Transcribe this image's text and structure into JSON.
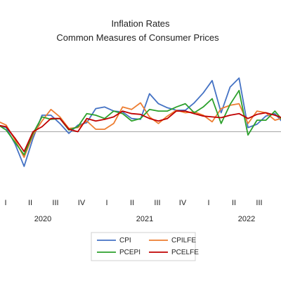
{
  "chart_data": {
    "type": "line",
    "title": "Inflation Rates",
    "subtitle": "Common Measures of Consumer Prices",
    "x_quarter_labels": [
      "I",
      "II",
      "III",
      "IV",
      "I",
      "II",
      "III",
      "IV",
      "I",
      "II",
      "III"
    ],
    "x_year_labels": [
      "2020",
      "2021",
      "2022"
    ],
    "ylim": [
      -6,
      10
    ],
    "grid": false,
    "legend_position": "bottom",
    "series": [
      {
        "name": "CPI",
        "color": "#4472c4",
        "values": [
          0.8,
          0.5,
          -1.5,
          -4.2,
          -0.8,
          2.0,
          2.0,
          1.0,
          -0.2,
          0.8,
          1.1,
          2.8,
          3.0,
          2.5,
          2.4,
          1.6,
          1.5,
          4.6,
          3.4,
          2.9,
          2.6,
          2.6,
          3.5,
          4.7,
          6.2,
          2.3,
          5.4,
          6.5,
          0.5,
          0.9,
          1.9,
          2.2,
          1.0
        ]
      },
      {
        "name": "CPILFE",
        "color": "#ed7d31",
        "values": [
          1.3,
          0.8,
          -1.0,
          -3.1,
          -0.4,
          1.3,
          2.7,
          1.8,
          0.4,
          0.5,
          1.3,
          0.3,
          0.3,
          1.0,
          3.0,
          2.7,
          3.5,
          1.8,
          1.0,
          1.9,
          2.6,
          2.3,
          2.4,
          2.0,
          1.2,
          2.8,
          3.2,
          3.4,
          1.0,
          2.5,
          2.3,
          1.4,
          1.7
        ]
      },
      {
        "name": "PCEPI",
        "color": "#2ca02c",
        "values": [
          0.9,
          0.2,
          -1.3,
          -2.8,
          -0.2,
          1.8,
          1.5,
          1.6,
          0.2,
          0.6,
          2.2,
          2.0,
          1.6,
          2.5,
          2.2,
          1.3,
          1.6,
          2.7,
          2.5,
          2.5,
          3.0,
          3.4,
          2.3,
          3.0,
          4.0,
          1.0,
          3.3,
          5.0,
          -0.4,
          1.4,
          1.4,
          2.5,
          1.2
        ]
      },
      {
        "name": "PCELFE",
        "color": "#c00000",
        "values": [
          0.8,
          0.6,
          -0.8,
          -2.4,
          0.0,
          0.6,
          1.6,
          1.6,
          0.3,
          0.0,
          1.6,
          1.3,
          1.5,
          1.8,
          2.5,
          2.2,
          2.1,
          1.6,
          1.3,
          1.6,
          2.5,
          2.5,
          2.2,
          1.9,
          1.8,
          1.7,
          2.0,
          2.2,
          1.6,
          2.1,
          2.3,
          2.0,
          1.6
        ]
      }
    ]
  }
}
